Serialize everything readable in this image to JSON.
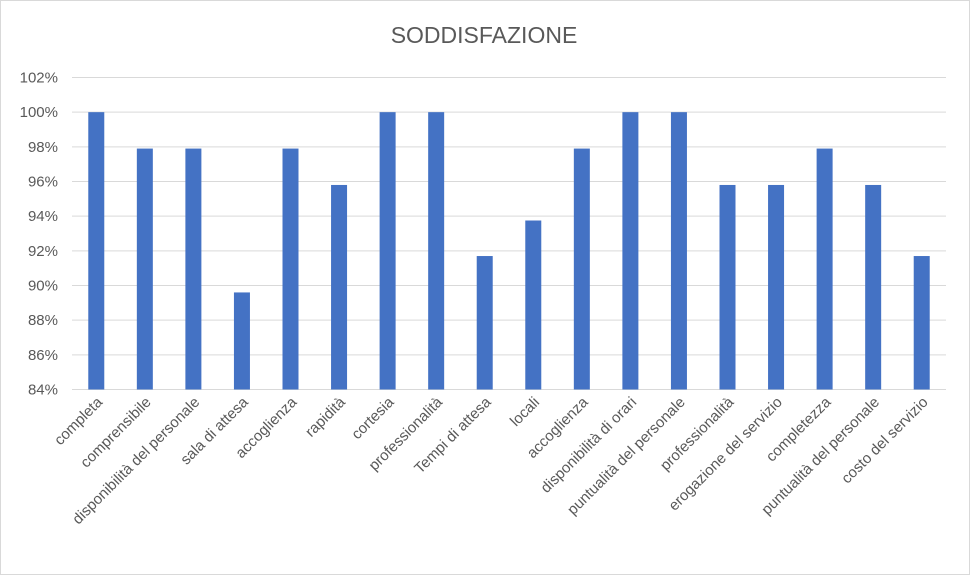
{
  "chart_data": {
    "type": "bar",
    "title": "SODDISFAZIONE",
    "xlabel": "",
    "ylabel": "",
    "categories": [
      "completa",
      "comprensibile",
      "disponibilità del personale",
      "sala di attesa",
      "accoglienza",
      "rapidità",
      "cortesia",
      "professionalità",
      "Tempi di attesa",
      "locali",
      "accoglienza",
      "disponibilità di orari",
      "puntualità del personale",
      "professionalità",
      "erogazione del servizio",
      "completezza",
      "puntualità del personale",
      "costo del servizio"
    ],
    "values": [
      100,
      97.9,
      97.9,
      89.6,
      97.9,
      95.8,
      100,
      100,
      91.7,
      93.75,
      97.9,
      100,
      100,
      95.8,
      95.8,
      97.9,
      95.8,
      91.7
    ],
    "ylim": [
      84,
      102
    ],
    "yticks": [
      "84%",
      "86%",
      "88%",
      "90%",
      "92%",
      "94%",
      "96%",
      "98%",
      "100%",
      "102%"
    ],
    "grid": true,
    "legend": "none",
    "colors": {
      "bar": "#4472C4",
      "grid": "#D9D9D9",
      "text": "#595959"
    }
  }
}
